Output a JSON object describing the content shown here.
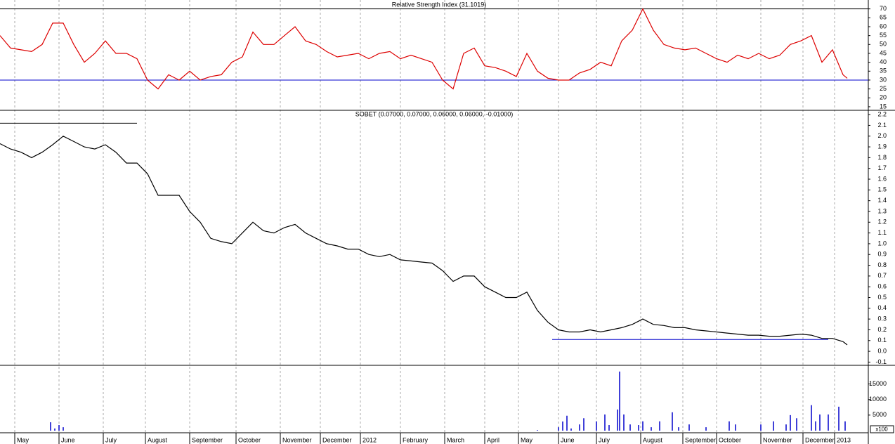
{
  "chart_data": [
    {
      "type": "line",
      "title": "Relative Strength Index (31.1019)",
      "color": "#dd0000",
      "x": [
        0,
        5,
        10,
        15,
        20,
        25,
        30,
        35,
        40,
        45,
        50,
        55,
        60,
        65,
        70,
        75,
        80,
        85,
        90,
        95,
        100,
        105,
        110,
        115,
        120,
        125,
        130,
        135,
        140,
        145,
        150,
        155,
        160,
        165,
        170,
        175,
        180,
        185,
        190,
        195,
        200,
        205,
        210,
        215,
        220,
        225,
        230,
        235,
        240,
        245,
        250,
        255,
        260,
        265,
        270,
        275,
        280,
        285,
        290,
        295,
        300,
        305,
        310,
        315,
        320,
        325,
        330,
        335,
        340,
        345,
        350,
        355,
        360,
        365,
        370,
        375,
        380,
        385,
        390,
        395,
        400,
        402
      ],
      "values": [
        55,
        48,
        47,
        46,
        50,
        62,
        62,
        50,
        40,
        45,
        52,
        45,
        45,
        42,
        30,
        25,
        33,
        30,
        35,
        30,
        32,
        33,
        40,
        43,
        57,
        50,
        50,
        55,
        60,
        52,
        50,
        46,
        43,
        44,
        45,
        42,
        45,
        46,
        42,
        44,
        42,
        40,
        30,
        25,
        45,
        48,
        38,
        37,
        35,
        32,
        45,
        35,
        31,
        30,
        30,
        34,
        36,
        40,
        38,
        52,
        58,
        70,
        58,
        50,
        48,
        47,
        48,
        45,
        42,
        40,
        44,
        42,
        45,
        42,
        44,
        50,
        52,
        55,
        40,
        47,
        33,
        31
      ],
      "xlim": [
        0,
        412
      ],
      "ylim": [
        13,
        75
      ],
      "yticks": [
        15,
        20,
        25,
        30,
        35,
        40,
        45,
        50,
        55,
        60,
        65,
        70
      ],
      "hlines": [
        {
          "value": 70,
          "from": 0,
          "to": 412,
          "color": "#000000"
        },
        {
          "value": 30,
          "from": 0,
          "to": 412,
          "color": "#0000cc"
        }
      ]
    },
    {
      "type": "line",
      "title": "SOBET (0.07000, 0.07000, 0.06000, 0.06000, -0.01000)",
      "color": "#000000",
      "x": [
        0,
        5,
        10,
        15,
        20,
        25,
        30,
        35,
        40,
        45,
        50,
        55,
        60,
        65,
        70,
        75,
        80,
        85,
        90,
        95,
        100,
        105,
        110,
        115,
        120,
        125,
        130,
        135,
        140,
        145,
        150,
        155,
        160,
        165,
        170,
        175,
        180,
        185,
        190,
        195,
        200,
        205,
        210,
        215,
        220,
        225,
        230,
        235,
        240,
        245,
        250,
        255,
        260,
        265,
        270,
        275,
        280,
        285,
        290,
        295,
        300,
        305,
        310,
        315,
        320,
        325,
        330,
        335,
        340,
        345,
        350,
        355,
        360,
        365,
        370,
        375,
        380,
        385,
        390,
        395,
        400,
        402
      ],
      "values": [
        1.93,
        1.88,
        1.85,
        1.8,
        1.85,
        1.92,
        2.0,
        1.95,
        1.9,
        1.88,
        1.92,
        1.85,
        1.75,
        1.75,
        1.65,
        1.45,
        1.45,
        1.45,
        1.3,
        1.2,
        1.05,
        1.02,
        1.0,
        1.1,
        1.2,
        1.12,
        1.1,
        1.15,
        1.18,
        1.1,
        1.05,
        1.0,
        0.98,
        0.95,
        0.95,
        0.9,
        0.88,
        0.9,
        0.85,
        0.84,
        0.83,
        0.82,
        0.75,
        0.65,
        0.7,
        0.7,
        0.6,
        0.55,
        0.5,
        0.5,
        0.55,
        0.38,
        0.27,
        0.2,
        0.18,
        0.18,
        0.2,
        0.18,
        0.2,
        0.22,
        0.25,
        0.3,
        0.25,
        0.24,
        0.22,
        0.22,
        0.2,
        0.19,
        0.18,
        0.17,
        0.16,
        0.15,
        0.15,
        0.14,
        0.14,
        0.15,
        0.16,
        0.15,
        0.12,
        0.12,
        0.09,
        0.06
      ],
      "xlim": [
        0,
        412
      ],
      "ylim": [
        -0.13,
        2.24
      ],
      "yticks": [
        2.2,
        2.1,
        {
          "value": 2,
          "label": "2.0"
        },
        1.9,
        1.8,
        1.7,
        1.6,
        1.5,
        1.4,
        1.3,
        1.2,
        1.1,
        {
          "value": 1,
          "label": "1.0"
        },
        0.9,
        0.8,
        0.7,
        0.6,
        0.5,
        0.4,
        0.3,
        0.2,
        0.1,
        {
          "value": 0,
          "label": "0.0"
        },
        -0.1
      ],
      "hlines": [
        {
          "value": 2.12,
          "from": 0,
          "to": 65,
          "color": "#000000"
        },
        {
          "value": 0.11,
          "from": 262,
          "to": 393,
          "color": "#0000cc"
        }
      ]
    },
    {
      "type": "bar",
      "color": "#0000cc",
      "unit_label": "x100",
      "x": [
        24,
        26,
        28,
        30,
        255,
        265,
        267,
        269,
        271,
        275,
        277,
        283,
        287,
        289,
        293,
        294,
        296,
        299,
        303,
        305,
        309,
        313,
        319,
        322,
        327,
        335,
        346,
        349,
        361,
        367,
        373,
        375,
        378,
        385,
        387,
        389,
        393,
        398,
        401
      ],
      "values": [
        2700,
        700,
        1800,
        1100,
        200,
        1100,
        2950,
        4800,
        700,
        2000,
        4000,
        3000,
        5200,
        1800,
        6800,
        19000,
        5200,
        2000,
        1800,
        3000,
        1100,
        3000,
        5900,
        1100,
        2000,
        1100,
        3000,
        2000,
        2000,
        3000,
        2000,
        5000,
        4000,
        8200,
        3000,
        5200,
        5200,
        7700,
        3000
      ],
      "xlim": [
        0,
        412
      ],
      "ylim": [
        0,
        21000
      ],
      "yticks": [
        5000,
        10000,
        15000
      ],
      "xticks": [
        {
          "value": 7,
          "label": "May"
        },
        {
          "value": 28,
          "label": "June"
        },
        {
          "value": 49,
          "label": "July"
        },
        {
          "value": 69,
          "label": "August"
        },
        {
          "value": 90,
          "label": "September"
        },
        {
          "value": 112,
          "label": "October"
        },
        {
          "value": 133,
          "label": "November"
        },
        {
          "value": 152,
          "label": "December"
        },
        {
          "value": 171,
          "label": "2012"
        },
        {
          "value": 190,
          "label": "February"
        },
        {
          "value": 211,
          "label": "March"
        },
        {
          "value": 230,
          "label": "April"
        },
        {
          "value": 246,
          "label": "May"
        },
        {
          "value": 265,
          "label": "June"
        },
        {
          "value": 283,
          "label": "July"
        },
        {
          "value": 304,
          "label": "August"
        },
        {
          "value": 324,
          "label": "September"
        },
        {
          "value": 340,
          "label": "October"
        },
        {
          "value": 361,
          "label": "November"
        },
        {
          "value": 381,
          "label": "December"
        },
        {
          "value": 396,
          "label": "2013"
        }
      ]
    }
  ]
}
